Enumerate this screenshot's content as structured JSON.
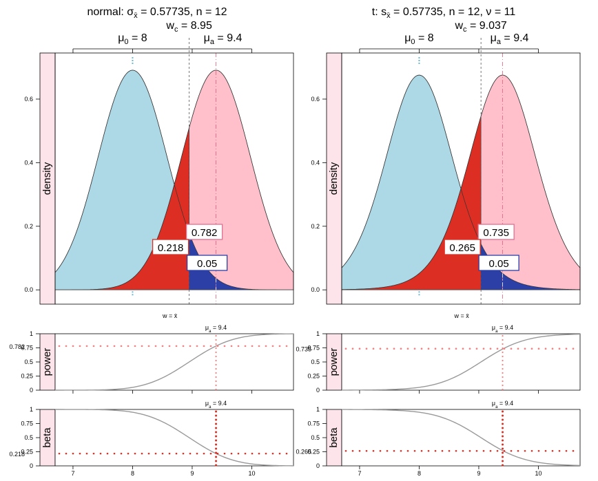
{
  "chart_data": [
    {
      "type": "area",
      "id": "normal",
      "title": "normal: σ",
      "title_sub": "x̄",
      "title_rest": " = 0.57735,  n = 12",
      "crit_label": "w",
      "crit_sub": "c",
      "crit_text": " = 8.95",
      "mu0_label": "μ",
      "mu0_sub": "0",
      "mu0_text": " = 8",
      "mua_label": "μ",
      "mua_sub": "a",
      "mua_text": " = 9.4",
      "ylabel": "density",
      "x_axis_label": "w = x̄",
      "xlim": [
        6.7,
        10.7
      ],
      "ylim": [
        -0.045,
        0.745
      ],
      "yticks": [
        "0.0",
        "0.2",
        "0.4",
        "0.6"
      ],
      "ytick_values": [
        0,
        0.2,
        0.4,
        0.6
      ],
      "mu0": 8,
      "mua": 9.4,
      "se": 0.57735,
      "df": null,
      "crit": 8.95,
      "power": 0.782,
      "beta": 0.218,
      "alpha": 0.05,
      "power_label": "0.782",
      "beta_label": "0.218",
      "alpha_label": "0.05",
      "colors": {
        "null": "#add8e6",
        "alt": "#ffc0cb",
        "beta": "#dc2e22",
        "alpha": "#2b3fa6",
        "strip": "#fde4ea"
      }
    },
    {
      "type": "line",
      "id": "normal-power",
      "ylabel": "power",
      "top_label": "μ",
      "top_sub": "a",
      "top_text": " = 9.4",
      "left_value_label": "0.782",
      "yticks": [
        "0",
        "0.25",
        "0.5",
        "0.75",
        "1"
      ],
      "ytick_values": [
        0,
        0.25,
        0.5,
        0.75,
        1
      ],
      "xticks": [
        "7",
        "8",
        "9",
        "10"
      ],
      "xtick_values": [
        7,
        8,
        9,
        10
      ],
      "xlim": [
        6.7,
        10.7
      ],
      "ylim": [
        0,
        1
      ],
      "mark_x": 9.4,
      "mark_y": 0.782
    },
    {
      "type": "line",
      "id": "normal-beta",
      "ylabel": "beta",
      "top_label": "μ",
      "top_sub": "a",
      "top_text": " = 9.4",
      "left_value_label": "0.218",
      "yticks": [
        "0",
        "0.25",
        "0.5",
        "0.75",
        "1"
      ],
      "ytick_values": [
        0,
        0.25,
        0.5,
        0.75,
        1
      ],
      "xticks": [
        "7",
        "8",
        "9",
        "10"
      ],
      "xtick_values": [
        7,
        8,
        9,
        10
      ],
      "xlim": [
        6.7,
        10.7
      ],
      "ylim": [
        0,
        1
      ],
      "mark_x": 9.4,
      "mark_y": 0.218
    },
    {
      "type": "area",
      "id": "t",
      "title": "t: s",
      "title_sub": "x̄",
      "title_rest": " = 0.57735,  n = 12,  ν = 11",
      "crit_label": "w",
      "crit_sub": "c",
      "crit_text": " = 9.037",
      "mu0_label": "μ",
      "mu0_sub": "0",
      "mu0_text": " = 8",
      "mua_label": "μ",
      "mua_sub": "a",
      "mua_text": " = 9.4",
      "ylabel": "density",
      "x_axis_label": "w = x̄",
      "xlim": [
        6.7,
        10.7
      ],
      "ylim": [
        -0.045,
        0.745
      ],
      "yticks": [
        "0.0",
        "0.2",
        "0.4",
        "0.6"
      ],
      "ytick_values": [
        0,
        0.2,
        0.4,
        0.6
      ],
      "mu0": 8,
      "mua": 9.4,
      "se": 0.57735,
      "df": 11,
      "crit": 9.037,
      "power": 0.735,
      "beta": 0.265,
      "alpha": 0.05,
      "power_label": "0.735",
      "beta_label": "0.265",
      "alpha_label": "0.05",
      "colors": {
        "null": "#add8e6",
        "alt": "#ffc0cb",
        "beta": "#dc2e22",
        "alpha": "#2b3fa6",
        "strip": "#fde4ea"
      }
    },
    {
      "type": "line",
      "id": "t-power",
      "ylabel": "power",
      "top_label": "μ",
      "top_sub": "a",
      "top_text": " = 9.4",
      "left_value_label": "0.735",
      "yticks": [
        "0",
        "0.25",
        "0.5",
        "0.75",
        "1"
      ],
      "ytick_values": [
        0,
        0.25,
        0.5,
        0.75,
        1
      ],
      "xticks": [
        "7",
        "8",
        "9",
        "10"
      ],
      "xtick_values": [
        7,
        8,
        9,
        10
      ],
      "xlim": [
        6.7,
        10.7
      ],
      "ylim": [
        0,
        1
      ],
      "mark_x": 9.4,
      "mark_y": 0.735
    },
    {
      "type": "line",
      "id": "t-beta",
      "ylabel": "beta",
      "top_label": "μ",
      "top_sub": "a",
      "top_text": " = 9.4",
      "left_value_label": "0.265",
      "yticks": [
        "0",
        "0.25",
        "0.5",
        "0.75",
        "1"
      ],
      "ytick_values": [
        0,
        0.25,
        0.5,
        0.75,
        1
      ],
      "xticks": [
        "7",
        "8",
        "9",
        "10"
      ],
      "xtick_values": [
        7,
        8,
        9,
        10
      ],
      "xlim": [
        6.7,
        10.7
      ],
      "ylim": [
        0,
        1
      ],
      "mark_x": 9.4,
      "mark_y": 0.265
    }
  ]
}
